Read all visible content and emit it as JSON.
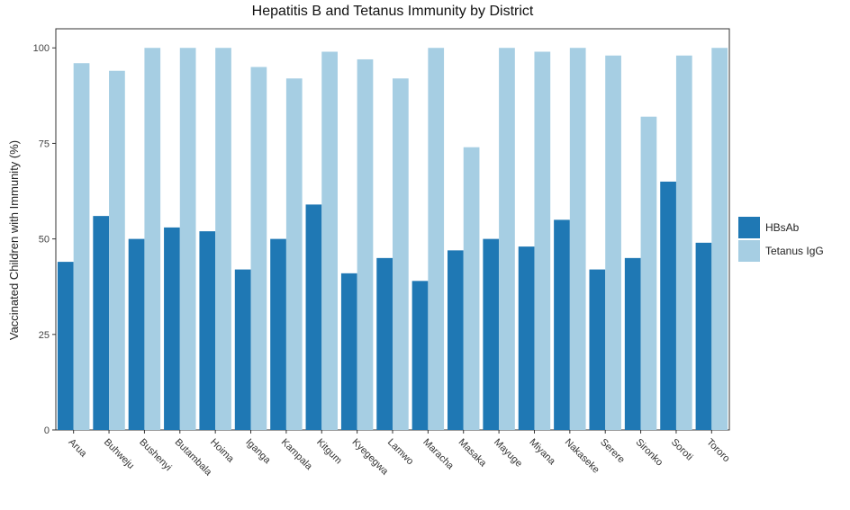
{
  "chart_data": {
    "type": "bar",
    "title": "Hepatitis B and Tetanus Immunity by District",
    "xlabel": "",
    "ylabel": "Vaccinated Children with Immunity (%)",
    "ylim": [
      0,
      105
    ],
    "yticks": [
      0,
      25,
      50,
      75,
      100
    ],
    "grid": false,
    "legend_position": "right",
    "categories": [
      "Arua",
      "Buhweju",
      "Bushenyi",
      "Butambala",
      "Hoima",
      "Iganga",
      "Kampala",
      "Kitgum",
      "Kyegegwa",
      "Lamwo",
      "Maracha",
      "Masaka",
      "Mayuge",
      "Miyana",
      "Nakaseke",
      "Serere",
      "Sironko",
      "Soroti",
      "Tororo"
    ],
    "series": [
      {
        "name": "HBsAb",
        "color": "#1f78b4",
        "values": [
          44,
          56,
          50,
          53,
          52,
          42,
          50,
          59,
          41,
          45,
          39,
          47,
          50,
          48,
          55,
          42,
          45,
          65,
          49
        ]
      },
      {
        "name": "Tetanus IgG",
        "color": "#a6cee3",
        "values": [
          96,
          94,
          100,
          100,
          100,
          95,
          92,
          99,
          97,
          92,
          100,
          74,
          100,
          99,
          100,
          98,
          82,
          98,
          100
        ]
      }
    ]
  }
}
